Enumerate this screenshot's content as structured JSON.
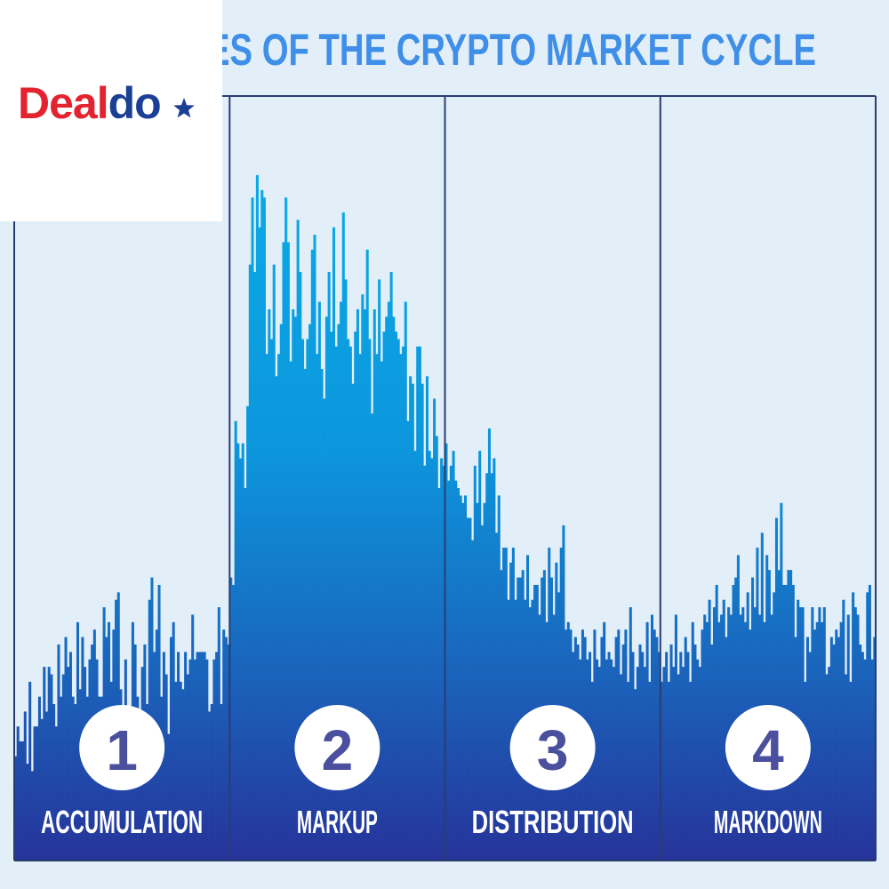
{
  "page": {
    "title_visible": "ES OF THE CRYPTO MARKET CYCLE"
  },
  "logo": {
    "brand_red": "Deal",
    "brand_blue": "do",
    "icon": "star-icon"
  },
  "colors": {
    "background": "#e2eff8",
    "title": "#3f8ee8",
    "bar_top": "#0aaeea",
    "bar_bottom": "#25379a",
    "divider": "#2a3d70",
    "badge_fill": "#ffffff",
    "badge_text": "#4a4f9e",
    "label_text": "#ffffff",
    "logo_red": "#e32330",
    "logo_blue": "#1b3f94"
  },
  "chart_data": {
    "type": "bar",
    "title": "ES OF THE CRYPTO MARKET CYCLE",
    "xlabel": "",
    "ylabel": "",
    "ylim": [
      0,
      100
    ],
    "grid": false,
    "legend": "none",
    "phases": [
      {
        "number": "1",
        "label": "ACCUMULATION",
        "values": [
          14,
          18,
          16,
          16,
          20,
          13,
          24,
          12,
          18,
          18,
          22,
          19,
          26,
          20,
          26,
          25,
          21,
          18,
          29,
          22,
          25,
          30,
          26,
          28,
          22,
          21,
          32,
          23,
          30,
          26,
          22,
          27,
          29,
          31,
          27,
          22,
          22,
          34,
          30,
          32,
          24,
          31,
          35,
          36,
          23,
          17,
          27,
          20,
          18,
          32,
          29,
          22,
          20,
          26,
          29,
          21,
          35,
          38,
          28,
          31,
          37,
          22,
          28,
          25,
          17,
          30,
          32,
          24,
          28,
          24,
          23,
          28,
          25,
          27,
          33,
          27,
          28,
          28,
          28,
          28,
          27,
          20,
          21,
          27,
          28,
          34,
          21,
          31,
          30,
          29
        ]
      },
      {
        "number": "2",
        "label": "MARKUP",
        "values": [
          38,
          37,
          59,
          56,
          54,
          56,
          50,
          61,
          80,
          89,
          79,
          92,
          85,
          90,
          89,
          68,
          74,
          70,
          80,
          65,
          68,
          72,
          83,
          89,
          83,
          67,
          74,
          73,
          86,
          79,
          70,
          66,
          70,
          72,
          82,
          84,
          68,
          75,
          66,
          62,
          73,
          79,
          71,
          85,
          69,
          72,
          75,
          87,
          78,
          70,
          69,
          64,
          71,
          74,
          68,
          76,
          74,
          82,
          70,
          60,
          74,
          68,
          78,
          67,
          71,
          73,
          75,
          79,
          73,
          71,
          70,
          68,
          69,
          75,
          59,
          65,
          64,
          55,
          69,
          69,
          64,
          53,
          65,
          55,
          54,
          62,
          57,
          50,
          54,
          53
        ]
      },
      {
        "number": "3",
        "label": "DISTRIBUTION",
        "values": [
          56,
          51,
          53,
          55,
          51,
          50,
          49,
          48,
          49,
          46,
          46,
          43,
          53,
          48,
          55,
          45,
          48,
          52,
          58,
          52,
          54,
          44,
          49,
          39,
          42,
          42,
          35,
          40,
          42,
          35,
          38,
          38,
          39,
          35,
          41,
          34,
          35,
          37,
          37,
          33,
          38,
          39,
          32,
          42,
          38,
          33,
          40,
          36,
          42,
          45,
          31,
          32,
          31,
          28,
          30,
          29,
          27,
          31,
          30,
          27,
          28,
          24,
          31,
          27,
          26,
          30,
          32,
          27,
          28,
          27,
          26,
          30,
          31,
          25,
          29,
          31,
          24,
          34,
          28,
          23,
          26,
          29,
          28,
          26,
          32,
          24,
          33,
          31,
          30,
          28
        ]
      },
      {
        "number": "4",
        "label": "MARKDOWN",
        "values": [
          24,
          26,
          28,
          24,
          29,
          26,
          33,
          25,
          28,
          26,
          30,
          28,
          24,
          32,
          29,
          27,
          26,
          31,
          33,
          32,
          35,
          29,
          34,
          37,
          32,
          33,
          35,
          30,
          34,
          33,
          37,
          38,
          41,
          33,
          34,
          32,
          36,
          31,
          38,
          34,
          42,
          33,
          44,
          32,
          41,
          39,
          33,
          36,
          46,
          39,
          48,
          37,
          37,
          39,
          39,
          37,
          30,
          35,
          34,
          34,
          24,
          30,
          28,
          34,
          31,
          32,
          34,
          32,
          34,
          25,
          26,
          30,
          29,
          31,
          30,
          32,
          35,
          25,
          33,
          24,
          36,
          34,
          33,
          29,
          28,
          27,
          36,
          37,
          27,
          30
        ]
      }
    ]
  }
}
